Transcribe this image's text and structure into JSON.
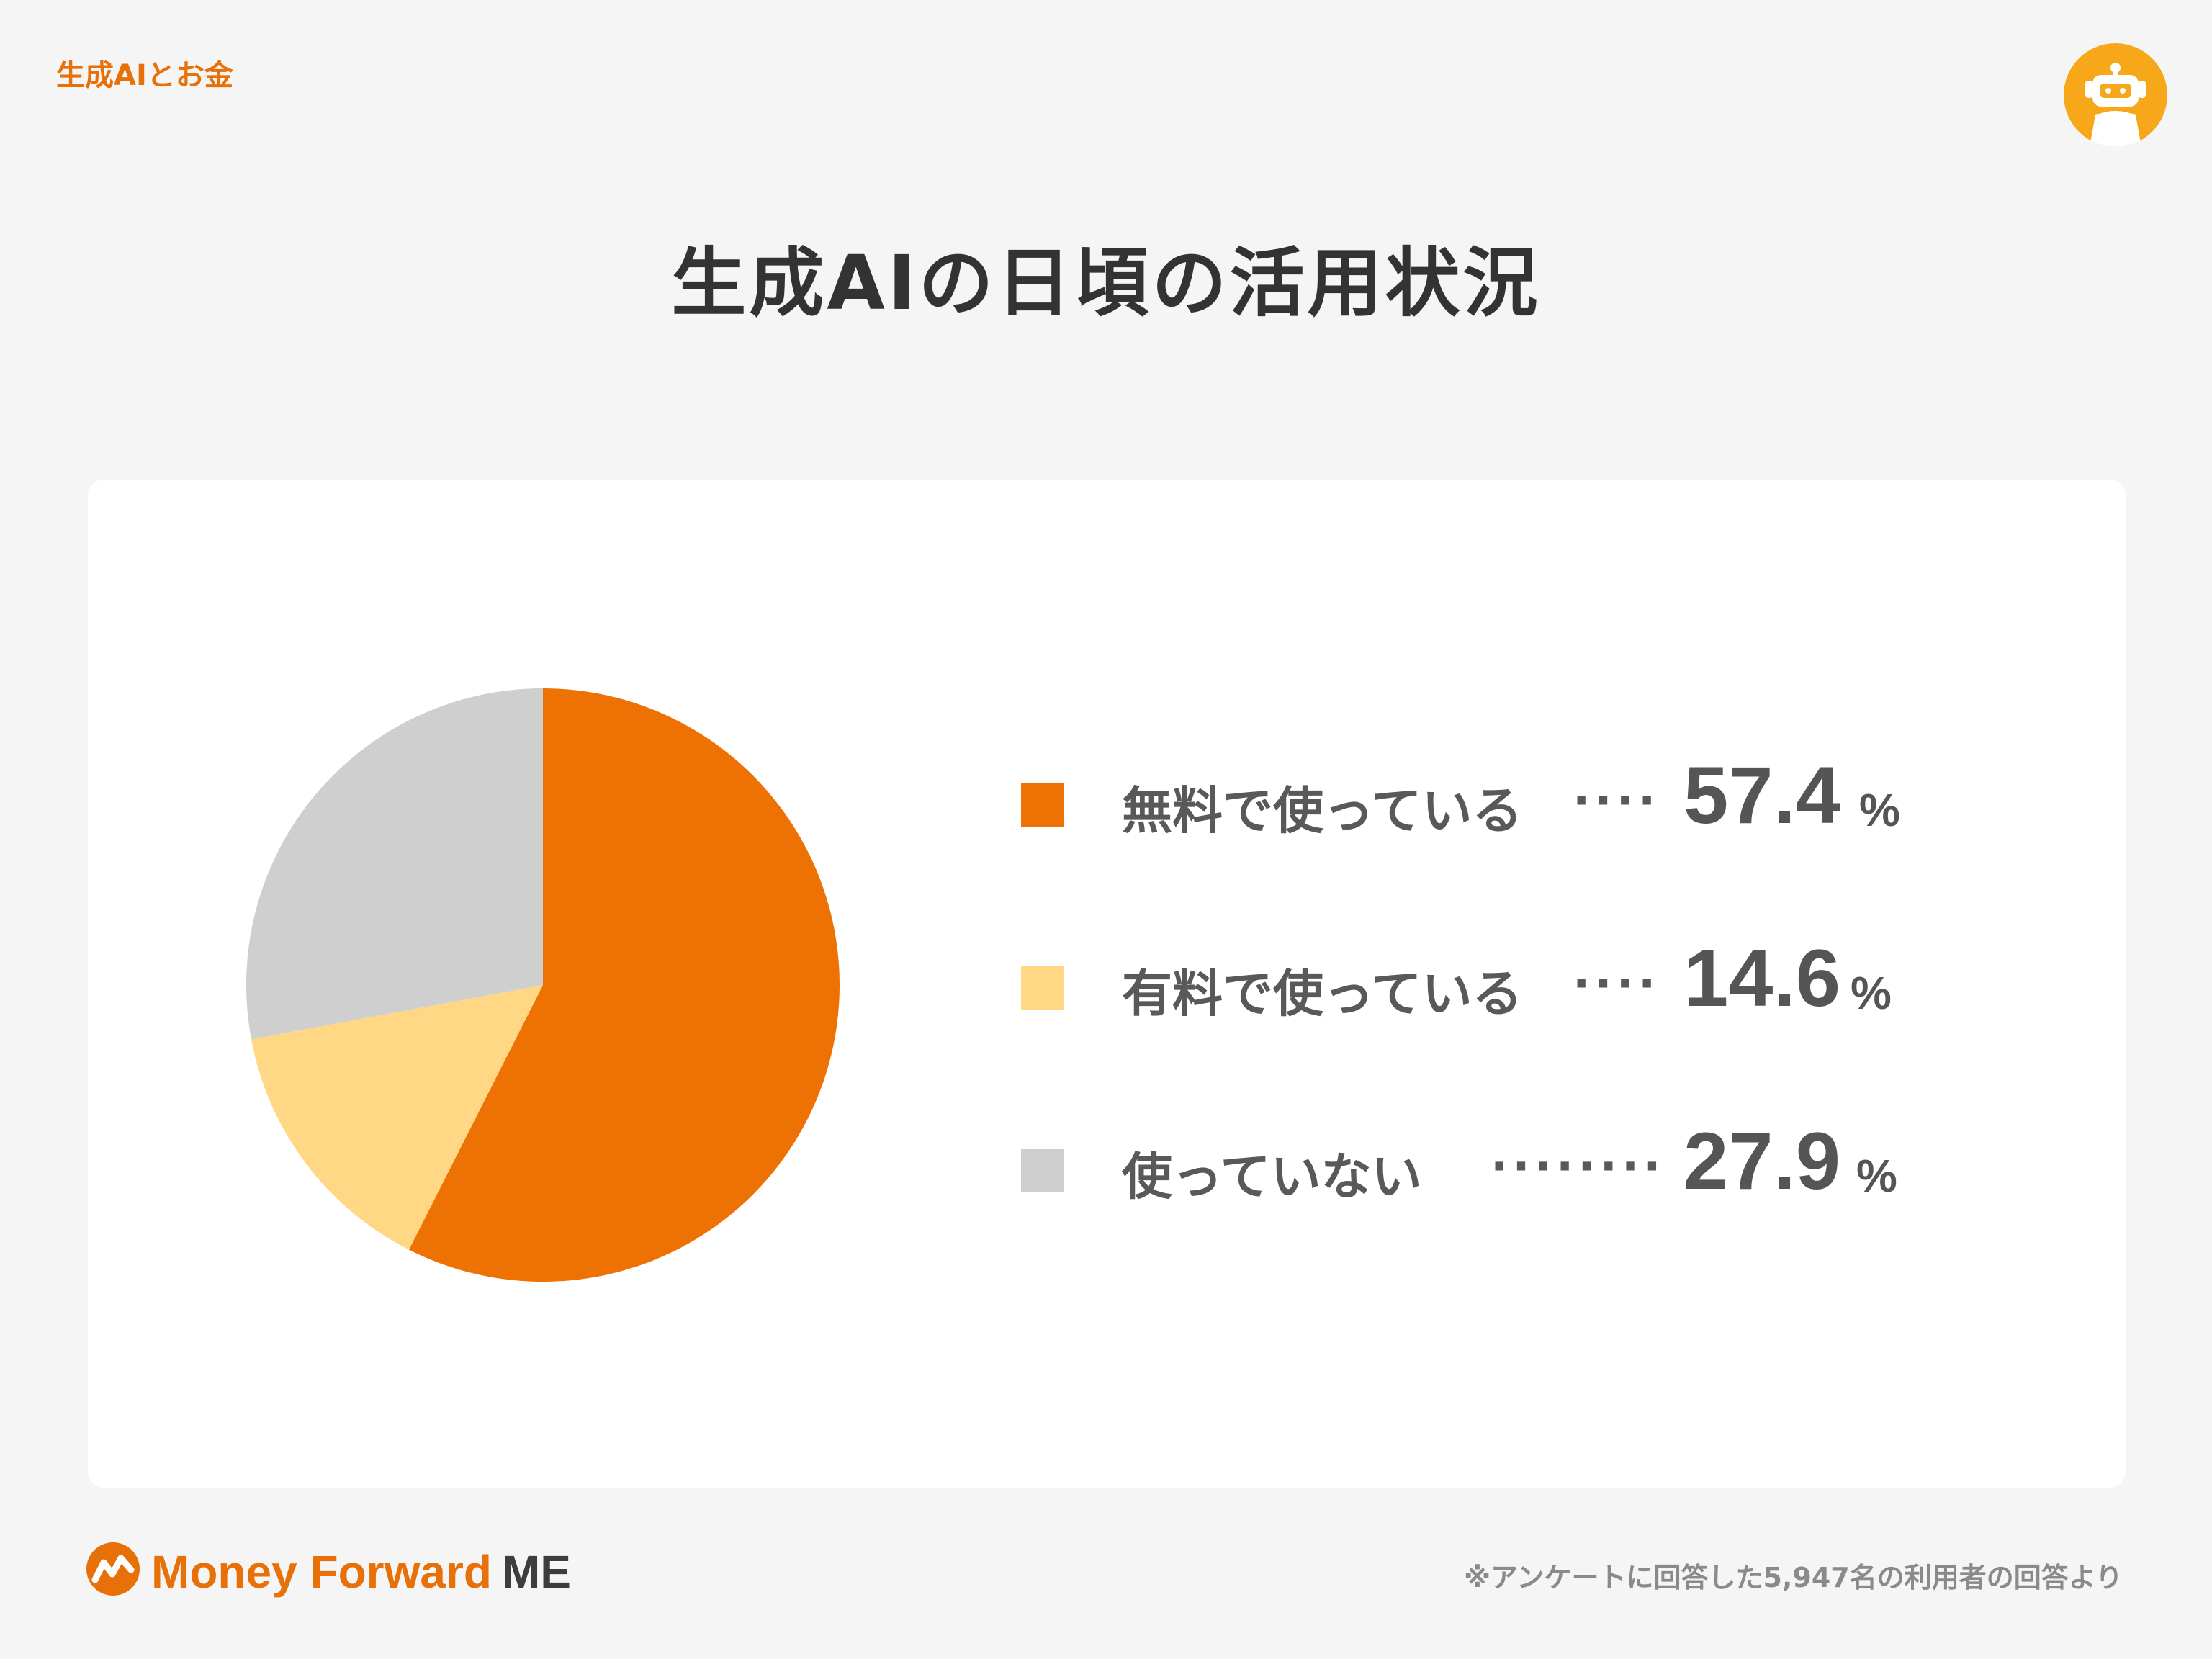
{
  "header": {
    "category": "生成AIとお金",
    "title": "生成AIの日頃の活用状況",
    "avatar_icon": "robot-icon",
    "avatar_color": "#f7a81a"
  },
  "chart_data": {
    "type": "pie",
    "categories": [
      "無料で使っている",
      "有料で使っている",
      "使っていない"
    ],
    "values": [
      57.4,
      14.6,
      27.9
    ],
    "colors": [
      "#ee7203",
      "#ffd785",
      "#cfcfcf"
    ],
    "unit": "%",
    "title": "生成AIの日頃の活用状況",
    "legend_position": "right"
  },
  "legend": {
    "items": [
      {
        "label": "無料で使っている",
        "dots": "····",
        "value": "57.4",
        "unit": "%"
      },
      {
        "label": "有料で使っている",
        "dots": "····",
        "value": "14.6",
        "unit": "%"
      },
      {
        "label": "使っていない",
        "dots": "········",
        "value": "27.9",
        "unit": "%"
      }
    ]
  },
  "footer": {
    "brand": "Money Forward",
    "brand_suffix": "ME",
    "brand_color": "#e87008",
    "note": "※アンケートに回答した5,947名の利用者の回答より"
  }
}
